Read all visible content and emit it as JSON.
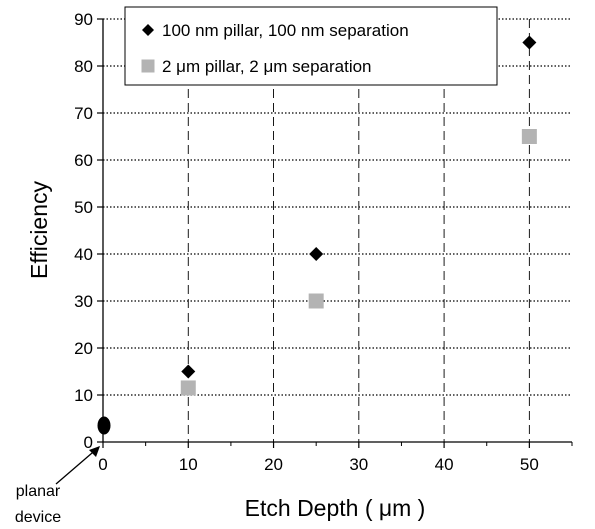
{
  "chart_data": {
    "type": "scatter",
    "xlabel": "Etch Depth ( μm )",
    "ylabel": "Efficiency",
    "xlim": [
      0,
      55
    ],
    "ylim": [
      0,
      90
    ],
    "xticks": [
      0,
      10,
      20,
      30,
      40,
      50
    ],
    "yticks": [
      0,
      10,
      20,
      30,
      40,
      50,
      60,
      70,
      80,
      90
    ],
    "grid": true,
    "legend_position": "top-left",
    "series": [
      {
        "name": "100 nm pillar, 100 nm separation",
        "marker": "diamond",
        "color": "#000000",
        "x": [
          10,
          25,
          50
        ],
        "y": [
          15,
          40,
          85
        ]
      },
      {
        "name": "2 μm pillar, 2 μm separation",
        "marker": "square",
        "color": "#b3b3b3",
        "x": [
          10,
          25,
          50
        ],
        "y": [
          11.5,
          30,
          65
        ]
      },
      {
        "name": "",
        "marker": "ellipse",
        "color": "#000000",
        "x": [
          0
        ],
        "y": [
          3.5
        ]
      }
    ],
    "annotation": {
      "text_line1": "planar",
      "text_line2": "device",
      "x": 0,
      "y": 0
    }
  }
}
